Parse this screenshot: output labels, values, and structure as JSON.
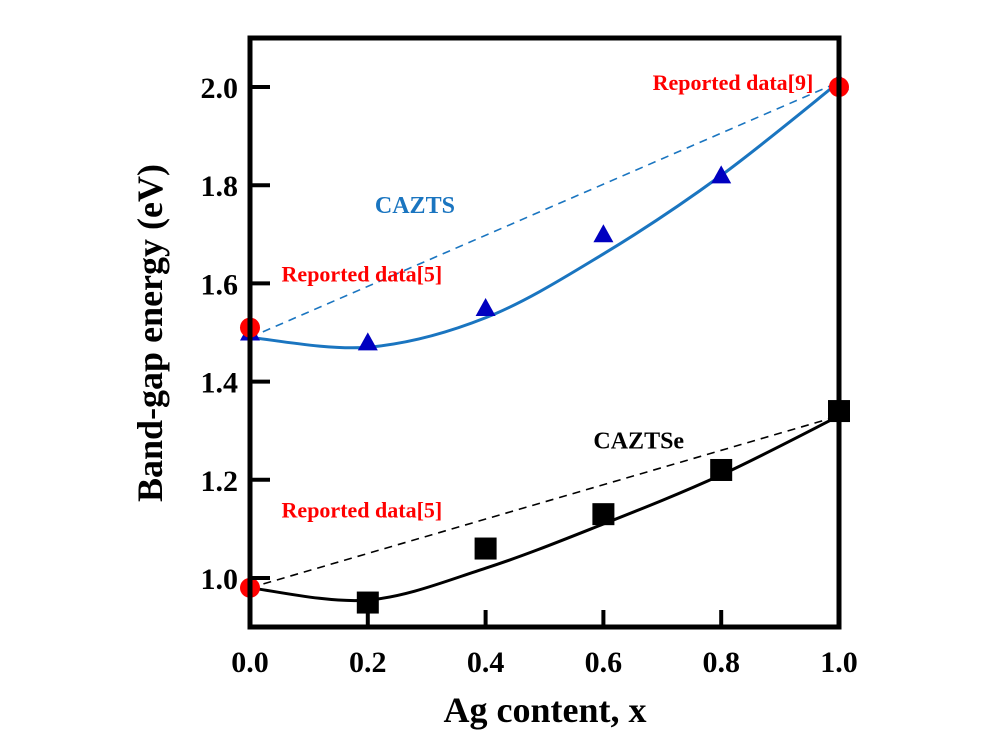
{
  "chart_data": {
    "type": "scatter",
    "title": "",
    "xlabel": "Ag content, x",
    "ylabel": "Band-gap energy (eV)",
    "xlim": [
      0.0,
      1.0
    ],
    "ylim": [
      0.9,
      2.1
    ],
    "xticks": [
      "0.0",
      "0.2",
      "0.4",
      "0.6",
      "0.8",
      "1.0"
    ],
    "yticks": [
      "1.0",
      "1.2",
      "1.4",
      "1.6",
      "1.8",
      "2.0"
    ],
    "grid": false,
    "series": [
      {
        "name": "CAZTS",
        "marker": "triangle",
        "color": "#0000c0",
        "line_color": "#1a75c0",
        "x": [
          0.0,
          0.2,
          0.4,
          0.6,
          0.8,
          1.0
        ],
        "y": [
          1.5,
          1.48,
          1.55,
          1.7,
          1.82,
          2.01
        ],
        "fit": "bowing curve",
        "fit_y": [
          1.49,
          1.47,
          1.53,
          1.66,
          1.82,
          2.01
        ]
      },
      {
        "name": "CAZTSe",
        "marker": "square",
        "color": "#000000",
        "line_color": "#000000",
        "x": [
          0.2,
          0.4,
          0.6,
          0.8,
          1.0
        ],
        "y": [
          0.95,
          1.06,
          1.13,
          1.22,
          1.34
        ],
        "fit": "bowing curve",
        "fit_x": [
          0.0,
          0.2,
          0.4,
          0.6,
          0.8,
          1.0
        ],
        "fit_y": [
          0.98,
          0.955,
          1.02,
          1.11,
          1.21,
          1.33
        ]
      },
      {
        "name": "Reported data",
        "marker": "circle",
        "color": "#ff0000",
        "x": [
          0.0,
          0.0,
          1.0
        ],
        "y": [
          1.51,
          0.98,
          2.0
        ]
      }
    ],
    "reference_lines": [
      {
        "name": "CAZTS linear (dashed)",
        "color": "#1a75c0",
        "x": [
          0.0,
          1.0
        ],
        "y": [
          1.49,
          2.01
        ]
      },
      {
        "name": "CAZTSe linear (dashed)",
        "color": "#000000",
        "x": [
          0.0,
          1.0
        ],
        "y": [
          0.98,
          1.33
        ]
      }
    ],
    "annotations": [
      {
        "text": "Reported data[9]",
        "color": "#ff0000",
        "x": 0.82,
        "y": 2.01
      },
      {
        "text": "Reported data[5]",
        "color": "#ff0000",
        "x": 0.19,
        "y": 1.62
      },
      {
        "text": "Reported data[5]",
        "color": "#ff0000",
        "x": 0.19,
        "y": 1.14
      },
      {
        "text": "CAZTS",
        "color": "#1a75c0",
        "x": 0.28,
        "y": 1.76
      },
      {
        "text": "CAZTSe",
        "color": "#000000",
        "x": 0.66,
        "y": 1.28
      }
    ]
  }
}
